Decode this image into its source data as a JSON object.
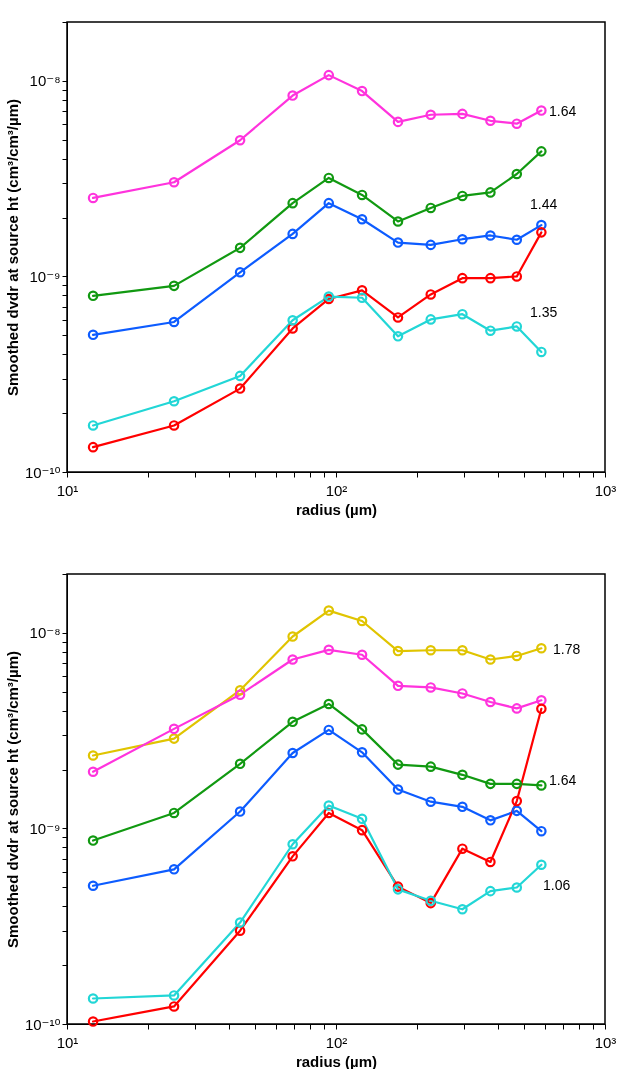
{
  "chart_data": [
    {
      "type": "line",
      "xlabel": "radius (µm)",
      "ylabel": "Smoothed dvdr at source ht (cm³/cm³/µm)",
      "log": "xy",
      "grid": false,
      "marker": "circle",
      "line_style": "solid",
      "x": [
        12.5,
        25,
        44,
        69,
        94,
        125,
        170,
        225,
        295,
        375,
        470,
        580
      ],
      "xlim": [
        10,
        1000
      ],
      "xticks": [
        {
          "value": 10,
          "label": "10¹"
        },
        {
          "value": 20,
          "label": null
        },
        {
          "value": 30,
          "label": null
        },
        {
          "value": 40,
          "label": null
        },
        {
          "value": 50,
          "label": null
        },
        {
          "value": 60,
          "label": null
        },
        {
          "value": 70,
          "label": null
        },
        {
          "value": 80,
          "label": null
        },
        {
          "value": 90,
          "label": null
        },
        {
          "value": 100,
          "label": "10²"
        },
        {
          "value": 200,
          "label": null
        },
        {
          "value": 300,
          "label": null
        },
        {
          "value": 400,
          "label": null
        },
        {
          "value": 500,
          "label": null
        },
        {
          "value": 600,
          "label": null
        },
        {
          "value": 700,
          "label": null
        },
        {
          "value": 800,
          "label": null
        },
        {
          "value": 900,
          "label": null
        },
        {
          "value": 1000,
          "label": "10³"
        }
      ],
      "ylim": [
        1e-10,
        2e-08
      ],
      "yticks": [
        {
          "value": 1e-10,
          "label": "10⁻¹⁰"
        },
        {
          "value": 2e-10,
          "label": null
        },
        {
          "value": 3e-10,
          "label": null
        },
        {
          "value": 4e-10,
          "label": null
        },
        {
          "value": 5e-10,
          "label": null
        },
        {
          "value": 6e-10,
          "label": null
        },
        {
          "value": 7e-10,
          "label": null
        },
        {
          "value": 8e-10,
          "label": null
        },
        {
          "value": 9e-10,
          "label": null
        },
        {
          "value": 1e-09,
          "label": "10⁻⁹"
        },
        {
          "value": 2e-09,
          "label": null
        },
        {
          "value": 3e-09,
          "label": null
        },
        {
          "value": 4e-09,
          "label": null
        },
        {
          "value": 5e-09,
          "label": null
        },
        {
          "value": 6e-09,
          "label": null
        },
        {
          "value": 7e-09,
          "label": null
        },
        {
          "value": 8e-09,
          "label": null
        },
        {
          "value": 9e-09,
          "label": null
        },
        {
          "value": 1e-08,
          "label": "10⁻⁸"
        },
        {
          "value": 2e-08,
          "label": null
        }
      ],
      "series": [
        {
          "color": "#ff33dd",
          "values": [
            2.52e-09,
            3.03e-09,
            4.97e-09,
            8.41e-09,
            1.07e-08,
            8.87e-09,
            6.17e-09,
            6.71e-09,
            6.78e-09,
            6.25e-09,
            6.04e-09,
            7.05e-09
          ]
        },
        {
          "color": "#119911",
          "values": [
            7.96e-10,
            8.95e-10,
            1.4e-09,
            2.37e-09,
            3.19e-09,
            2.61e-09,
            1.91e-09,
            2.24e-09,
            2.58e-09,
            2.69e-09,
            3.34e-09,
            4.36e-09
          ]
        },
        {
          "color": "#0d5cff",
          "values": [
            5.03e-10,
            5.85e-10,
            1.05e-09,
            1.65e-09,
            2.37e-09,
            1.96e-09,
            1.49e-09,
            1.45e-09,
            1.55e-09,
            1.62e-09,
            1.54e-09,
            1.83e-09
          ]
        },
        {
          "color": "#ff0000",
          "values": [
            1.34e-10,
            1.73e-10,
            2.67e-10,
            5.42e-10,
            7.67e-10,
            8.49e-10,
            6.17e-10,
            8.09e-10,
            9.8e-10,
            9.8e-10,
            1e-09,
            1.68e-09
          ]
        },
        {
          "color": "#22d6d6",
          "values": [
            1.73e-10,
            2.3e-10,
            3.1e-10,
            5.97e-10,
            7.89e-10,
            7.78e-10,
            4.94e-10,
            6.03e-10,
            6.41e-10,
            5.28e-10,
            5.55e-10,
            4.11e-10
          ]
        }
      ],
      "annotations": [
        "1.64",
        "1.44",
        "1.35"
      ]
    },
    {
      "type": "line",
      "xlabel": "radius (µm)",
      "ylabel": "Smoothed dvdr at source ht (cm³/cm³/µm)",
      "log": "xy",
      "grid": false,
      "marker": "circle",
      "line_style": "solid",
      "x": [
        12.5,
        25,
        44,
        69,
        94,
        125,
        170,
        225,
        295,
        375,
        470,
        580
      ],
      "xlim": [
        10,
        1000
      ],
      "xticks": [
        {
          "value": 10,
          "label": "10¹"
        },
        {
          "value": 20,
          "label": null
        },
        {
          "value": 30,
          "label": null
        },
        {
          "value": 40,
          "label": null
        },
        {
          "value": 50,
          "label": null
        },
        {
          "value": 60,
          "label": null
        },
        {
          "value": 70,
          "label": null
        },
        {
          "value": 80,
          "label": null
        },
        {
          "value": 90,
          "label": null
        },
        {
          "value": 100,
          "label": "10²"
        },
        {
          "value": 200,
          "label": null
        },
        {
          "value": 300,
          "label": null
        },
        {
          "value": 400,
          "label": null
        },
        {
          "value": 500,
          "label": null
        },
        {
          "value": 600,
          "label": null
        },
        {
          "value": 700,
          "label": null
        },
        {
          "value": 800,
          "label": null
        },
        {
          "value": 900,
          "label": null
        },
        {
          "value": 1000,
          "label": "10³"
        }
      ],
      "ylim": [
        1e-10,
        2e-08
      ],
      "yticks": [
        {
          "value": 1e-10,
          "label": "10⁻¹⁰"
        },
        {
          "value": 2e-10,
          "label": null
        },
        {
          "value": 3e-10,
          "label": null
        },
        {
          "value": 4e-10,
          "label": null
        },
        {
          "value": 5e-10,
          "label": null
        },
        {
          "value": 6e-10,
          "label": null
        },
        {
          "value": 7e-10,
          "label": null
        },
        {
          "value": 8e-10,
          "label": null
        },
        {
          "value": 9e-10,
          "label": null
        },
        {
          "value": 1e-09,
          "label": "10⁻⁹"
        },
        {
          "value": 2e-09,
          "label": null
        },
        {
          "value": 3e-09,
          "label": null
        },
        {
          "value": 4e-09,
          "label": null
        },
        {
          "value": 5e-09,
          "label": null
        },
        {
          "value": 6e-09,
          "label": null
        },
        {
          "value": 7e-09,
          "label": null
        },
        {
          "value": 8e-09,
          "label": null
        },
        {
          "value": 9e-09,
          "label": null
        },
        {
          "value": 1e-08,
          "label": "10⁻⁸"
        },
        {
          "value": 2e-08,
          "label": null
        }
      ],
      "series": [
        {
          "color": "#e0c400",
          "values": [
            2.36e-09,
            2.88e-09,
            5.09e-09,
            9.58e-09,
            1.3e-08,
            1.15e-08,
            8.07e-09,
            8.15e-09,
            8.15e-09,
            7.31e-09,
            7.62e-09,
            8.34e-09
          ]
        },
        {
          "color": "#ff33dd",
          "values": [
            1.95e-09,
            3.23e-09,
            4.83e-09,
            7.31e-09,
            8.19e-09,
            7.73e-09,
            5.36e-09,
            5.26e-09,
            4.9e-09,
            4.43e-09,
            4.11e-09,
            4.52e-09
          ]
        },
        {
          "color": "#119911",
          "values": [
            8.67e-10,
            1.2e-09,
            2.14e-09,
            3.51e-09,
            4.33e-09,
            3.21e-09,
            2.12e-09,
            2.07e-09,
            1.88e-09,
            1.69e-09,
            1.69e-09,
            1.66e-09
          ]
        },
        {
          "color": "#0d5cff",
          "values": [
            5.09e-10,
            6.18e-10,
            1.22e-09,
            2.43e-09,
            3.19e-09,
            2.45e-09,
            1.58e-09,
            1.37e-09,
            1.29e-09,
            1.1e-09,
            1.23e-09,
            9.68e-10
          ]
        },
        {
          "color": "#ff0000",
          "values": [
            1.03e-10,
            1.23e-10,
            3e-10,
            7.2e-10,
            1.2e-09,
            9.8e-10,
            5.04e-10,
            4.15e-10,
            7.88e-10,
            6.74e-10,
            1.38e-09,
            4.09e-09
          ]
        },
        {
          "color": "#22d6d6",
          "values": [
            1.35e-10,
            1.4e-10,
            3.3e-10,
            8.3e-10,
            1.31e-09,
            1.12e-09,
            4.88e-10,
            4.27e-10,
            3.86e-10,
            4.78e-10,
            4.99e-10,
            6.52e-10
          ]
        }
      ],
      "annotations": [
        "1.78",
        "1.64",
        "1.06"
      ]
    }
  ]
}
